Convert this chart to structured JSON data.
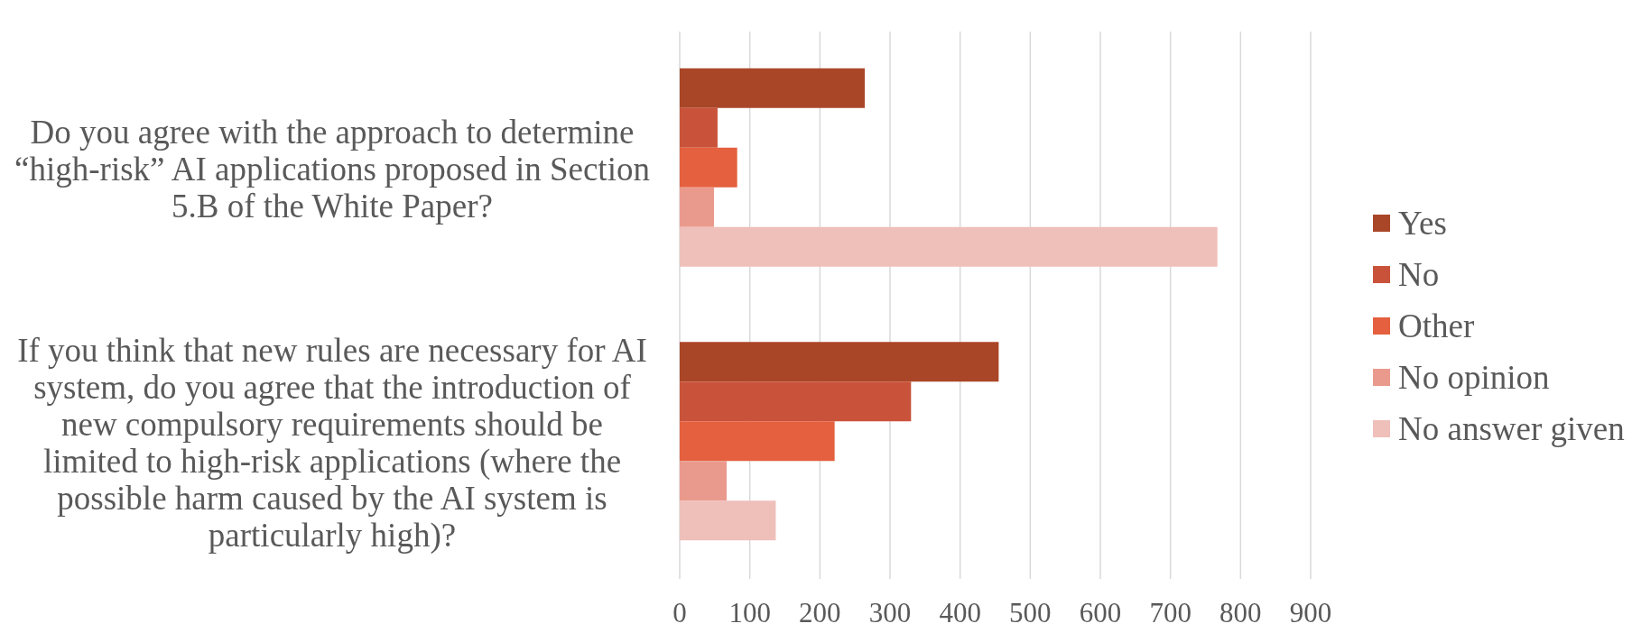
{
  "chart_data": {
    "type": "bar",
    "orientation": "horizontal",
    "categories": [
      "Do you agree with the approach to determine “high-risk” AI applications proposed in Section 5.B of the White Paper?",
      "If you think that new rules are necessary for AI system, do you agree that the introduction of new compulsory requirements should be limited to high-risk applications (where the possible harm caused by the AI system is particularly high)?"
    ],
    "series": [
      {
        "name": "Yes",
        "color": "#aa4628",
        "values": [
          264,
          455
        ]
      },
      {
        "name": "No",
        "color": "#c9533a",
        "values": [
          54,
          330
        ]
      },
      {
        "name": "Other",
        "color": "#e4603e",
        "values": [
          82,
          221
        ]
      },
      {
        "name": "No opinion",
        "color": "#ea9a8d",
        "values": [
          49,
          67
        ]
      },
      {
        "name": "No answer given",
        "color": "#efbfba",
        "values": [
          767,
          137
        ]
      }
    ],
    "xlim": [
      0,
      900
    ],
    "xticks": [
      0,
      100,
      200,
      300,
      400,
      500,
      600,
      700,
      800,
      900
    ],
    "grid": "x",
    "legend": "right"
  }
}
